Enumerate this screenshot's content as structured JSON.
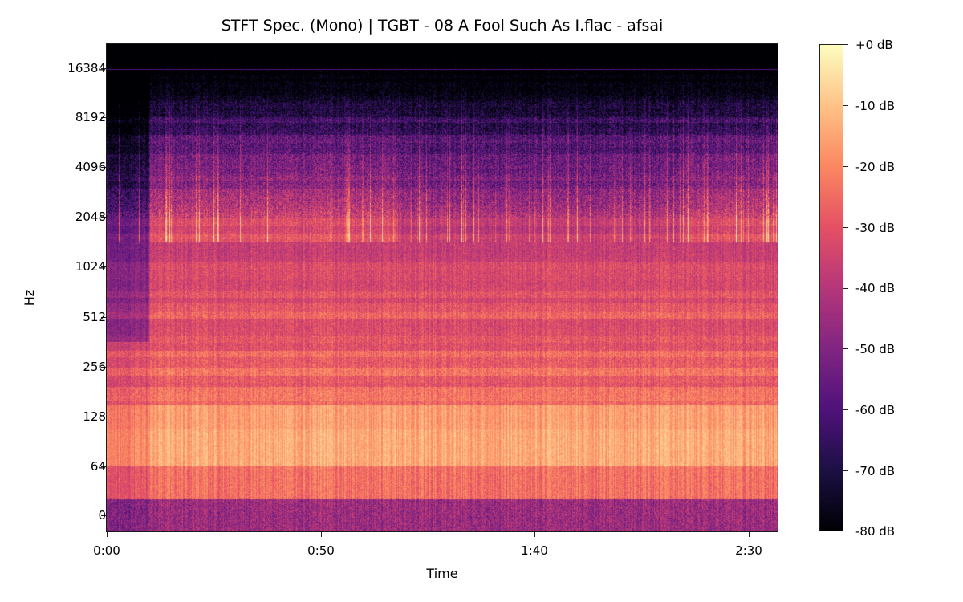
{
  "figure": {
    "title": "STFT Spec. (Mono) | TGBT - 08 A Fool Such As I.flac - afsai"
  },
  "chart_data": {
    "type": "heatmap",
    "title": "STFT Spec. (Mono) | TGBT - 08 A Fool Such As I.flac - afsai",
    "xlabel": "Time",
    "ylabel": "Hz",
    "x_axis": {
      "scale": "time",
      "ticks": [
        {
          "label": "0:00",
          "seconds": 0
        },
        {
          "label": "0:50",
          "seconds": 50
        },
        {
          "label": "1:40",
          "seconds": 100
        },
        {
          "label": "2:30",
          "seconds": 150
        }
      ],
      "xlim_seconds": [
        0,
        168
      ]
    },
    "y_axis": {
      "scale": "log2 (symlog near 0)",
      "ticks": [
        {
          "label": "16384",
          "hz": 16384
        },
        {
          "label": "8192",
          "hz": 8192
        },
        {
          "label": "4096",
          "hz": 4096
        },
        {
          "label": "2048",
          "hz": 2048
        },
        {
          "label": "1024",
          "hz": 1024
        },
        {
          "label": "512",
          "hz": 512
        },
        {
          "label": "256",
          "hz": 256
        },
        {
          "label": "128",
          "hz": 128
        },
        {
          "label": "64",
          "hz": 64
        },
        {
          "label": "0",
          "hz": 0
        }
      ]
    },
    "colorbar": {
      "colormap": "magma",
      "range_db": [
        -80,
        0
      ],
      "ticks": [
        "+0 dB",
        "-10 dB",
        "-20 dB",
        "-30 dB",
        "-40 dB",
        "-50 dB",
        "-60 dB",
        "-70 dB",
        "-80 dB"
      ],
      "stops": [
        "#000004",
        "#1c1044",
        "#4f127b",
        "#812581",
        "#b5367a",
        "#e55064",
        "#fb8761",
        "#fec287",
        "#fcfdbf"
      ]
    },
    "description": {
      "intro_quiet_until_seconds": 10,
      "audio_end_seconds": 167,
      "energy_peak_band_hz": [
        64,
        180
      ],
      "typical_level_low_freq_db": -12,
      "typical_level_mid_freq_db": -30,
      "high_freq_rolloff_hz": 8000,
      "lowpass_line_hz": 16000,
      "busy_sections_seconds": [
        [
          10,
          68
        ],
        [
          135,
          160
        ]
      ]
    }
  },
  "axes": {
    "y_ticks": [
      "16384",
      "8192",
      "4096",
      "2048",
      "1024",
      "512",
      "256",
      "128",
      "64",
      "0"
    ],
    "x_ticks": [
      "0:00",
      "0:50",
      "1:40",
      "2:30"
    ],
    "xlabel": "Time",
    "ylabel": "Hz"
  },
  "colorbar": {
    "labels": [
      "+0 dB",
      "-10 dB",
      "-20 dB",
      "-30 dB",
      "-40 dB",
      "-50 dB",
      "-60 dB",
      "-70 dB",
      "-80 dB"
    ]
  }
}
